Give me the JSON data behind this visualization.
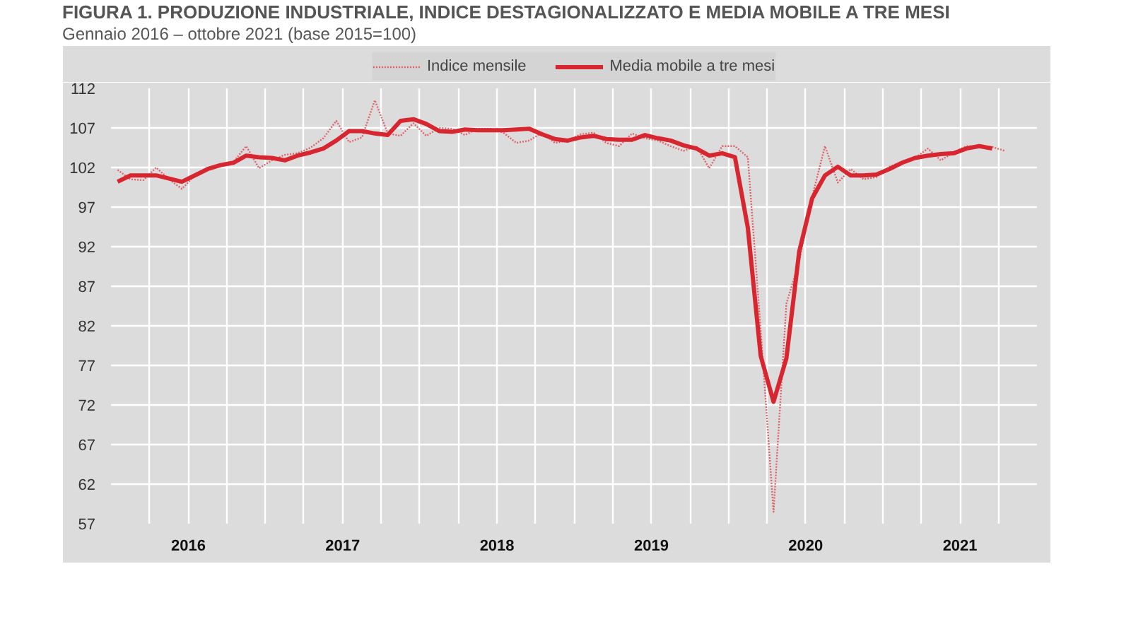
{
  "chart_data": {
    "type": "line",
    "title": "FIGURA 1. PRODUZIONE INDUSTRIALE, INDICE DESTAGIONALIZZATO E MEDIA MOBILE A TRE MESI",
    "subtitle": "Gennaio 2016 – ottobre 2021 (base 2015=100)",
    "x": [
      "2016-01",
      "2016-02",
      "2016-03",
      "2016-04",
      "2016-05",
      "2016-06",
      "2016-07",
      "2016-08",
      "2016-09",
      "2016-10",
      "2016-11",
      "2016-12",
      "2017-01",
      "2017-02",
      "2017-03",
      "2017-04",
      "2017-05",
      "2017-06",
      "2017-07",
      "2017-08",
      "2017-09",
      "2017-10",
      "2017-11",
      "2017-12",
      "2018-01",
      "2018-02",
      "2018-03",
      "2018-04",
      "2018-05",
      "2018-06",
      "2018-07",
      "2018-08",
      "2018-09",
      "2018-10",
      "2018-11",
      "2018-12",
      "2019-01",
      "2019-02",
      "2019-03",
      "2019-04",
      "2019-05",
      "2019-06",
      "2019-07",
      "2019-08",
      "2019-09",
      "2019-10",
      "2019-11",
      "2019-12",
      "2020-01",
      "2020-02",
      "2020-03",
      "2020-04",
      "2020-05",
      "2020-06",
      "2020-07",
      "2020-08",
      "2020-09",
      "2020-10",
      "2020-11",
      "2020-12",
      "2021-01",
      "2021-02",
      "2021-03",
      "2021-04",
      "2021-05",
      "2021-06",
      "2021-07",
      "2021-08",
      "2021-09",
      "2021-10"
    ],
    "series": [
      {
        "name": "Indice mensile",
        "color": "#e0626a",
        "line_style": "dotted",
        "values": [
          101.7,
          100.5,
          100.4,
          102.0,
          100.5,
          99.3,
          101.0,
          101.9,
          102.4,
          102.7,
          104.7,
          101.9,
          102.9,
          103.6,
          103.8,
          104.5,
          105.7,
          107.9,
          105.2,
          105.8,
          110.5,
          106.3,
          106.0,
          107.6,
          106.0,
          107.0,
          106.9,
          106.1,
          106.9,
          106.9,
          106.4,
          105.1,
          105.4,
          106.4,
          105.1,
          105.4,
          106.2,
          106.4,
          105.1,
          104.7,
          106.3,
          105.7,
          105.4,
          104.7,
          104.1,
          104.7,
          101.9,
          104.7,
          104.7,
          103.3,
          81.5,
          58.5,
          84.8,
          90.2,
          98.3,
          104.7,
          100.1,
          101.8,
          100.5,
          100.8,
          102.1,
          102.7,
          103.2,
          104.4,
          102.9,
          103.9,
          104.7,
          104.7,
          104.6,
          104.1
        ]
      },
      {
        "name": "Media mobile a tre mesi",
        "color": "#d7262f",
        "line_style": "solid",
        "values": [
          100.2,
          101.0,
          101.0,
          101.0,
          100.6,
          100.2,
          101.0,
          101.8,
          102.3,
          102.6,
          103.5,
          103.3,
          103.2,
          102.9,
          103.5,
          103.9,
          104.4,
          105.4,
          106.6,
          106.6,
          106.3,
          106.1,
          107.9,
          108.1,
          107.5,
          106.6,
          106.5,
          106.8,
          106.7,
          106.7,
          106.7,
          106.8,
          106.9,
          106.2,
          105.6,
          105.4,
          105.8,
          106.0,
          105.6,
          105.5,
          105.5,
          106.1,
          105.7,
          105.4,
          104.8,
          104.4,
          103.5,
          103.8,
          103.3,
          94.4,
          78.2,
          72.4,
          77.9,
          91.4,
          98.1,
          101.0,
          102.1,
          101.0,
          101.0,
          101.1,
          101.8,
          102.6,
          103.2,
          103.5,
          103.7,
          103.8,
          104.4,
          104.7,
          104.4,
          null
        ]
      }
    ],
    "xlim": [
      "2015-12-16",
      "2021-12-16"
    ],
    "xticks": [
      {
        "value": "2015-12-16",
        "label": null
      },
      {
        "value": "2016-03-16",
        "label": null
      },
      {
        "value": "2016-06-16",
        "label": "2016"
      },
      {
        "value": "2016-09-16",
        "label": null
      },
      {
        "value": "2016-12-16",
        "label": null
      },
      {
        "value": "2017-03-16",
        "label": null
      },
      {
        "value": "2017-06-16",
        "label": "2017"
      },
      {
        "value": "2017-09-16",
        "label": null
      },
      {
        "value": "2017-12-16",
        "label": null
      },
      {
        "value": "2018-03-16",
        "label": null
      },
      {
        "value": "2018-06-16",
        "label": "2018"
      },
      {
        "value": "2018-09-16",
        "label": null
      },
      {
        "value": "2018-12-16",
        "label": null
      },
      {
        "value": "2019-03-16",
        "label": null
      },
      {
        "value": "2019-06-16",
        "label": "2019"
      },
      {
        "value": "2019-09-16",
        "label": null
      },
      {
        "value": "2019-12-16",
        "label": null
      },
      {
        "value": "2020-03-16",
        "label": null
      },
      {
        "value": "2020-06-16",
        "label": "2020"
      },
      {
        "value": "2020-09-16",
        "label": null
      },
      {
        "value": "2020-12-16",
        "label": null
      },
      {
        "value": "2021-03-16",
        "label": null
      },
      {
        "value": "2021-06-16",
        "label": "2021"
      },
      {
        "value": "2021-09-16",
        "label": null
      },
      {
        "value": "2021-12-16",
        "label": null
      }
    ],
    "ylim": [
      57,
      112
    ],
    "yticks": [
      57,
      62,
      67,
      72,
      77,
      82,
      87,
      92,
      97,
      102,
      107,
      112
    ],
    "grid": true,
    "legend": "top",
    "marker": "none"
  }
}
